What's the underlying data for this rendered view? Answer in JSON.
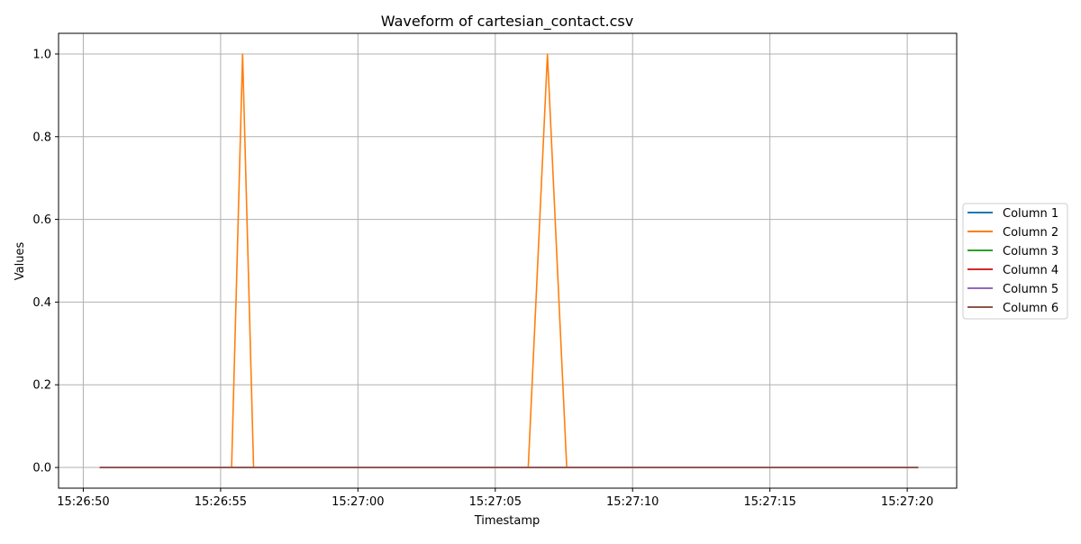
{
  "chart_data": {
    "type": "line",
    "title": "Waveform of cartesian_contact.csv",
    "xlabel": "Timestamp",
    "ylabel": "Values",
    "x_ticks": [
      "15:26:50",
      "15:26:55",
      "15:27:00",
      "15:27:05",
      "15:27:10",
      "15:27:15",
      "15:27:20"
    ],
    "x_tick_values": [
      "15:26:50",
      "15:26:55",
      "15:27:00",
      "15:27:05",
      "15:27:10",
      "15:27:15",
      "15:27:20"
    ],
    "xlim": [
      "15:26:49.1",
      "15:27:21.8"
    ],
    "y_ticks": [
      "0.0",
      "0.2",
      "0.4",
      "0.6",
      "0.8",
      "1.0"
    ],
    "y_tick_values": [
      0.0,
      0.2,
      0.4,
      0.6,
      0.8,
      1.0
    ],
    "ylim": [
      -0.05,
      1.05
    ],
    "grid": true,
    "legend_placement": "right",
    "series": [
      {
        "name": "Column 1",
        "color": "#1f77b4",
        "points": [
          [
            "15:26:50.6",
            0
          ],
          [
            "15:27:20.4",
            0
          ]
        ]
      },
      {
        "name": "Column 2",
        "color": "#ff7f0e",
        "points": [
          [
            "15:26:50.6",
            0
          ],
          [
            "15:26:55.4",
            0
          ],
          [
            "15:26:55.8",
            1
          ],
          [
            "15:26:56.2",
            0
          ],
          [
            "15:27:06.2",
            0
          ],
          [
            "15:27:06.9",
            1
          ],
          [
            "15:27:07.6",
            0
          ],
          [
            "15:27:20.4",
            0
          ]
        ]
      },
      {
        "name": "Column 3",
        "color": "#2ca02c",
        "points": [
          [
            "15:26:50.6",
            0
          ],
          [
            "15:27:20.4",
            0
          ]
        ]
      },
      {
        "name": "Column 4",
        "color": "#d62728",
        "points": [
          [
            "15:26:50.6",
            0
          ],
          [
            "15:27:20.4",
            0
          ]
        ]
      },
      {
        "name": "Column 5",
        "color": "#9467bd",
        "points": [
          [
            "15:26:50.6",
            0
          ],
          [
            "15:27:20.4",
            0
          ]
        ]
      },
      {
        "name": "Column 6",
        "color": "#8c564b",
        "points": [
          [
            "15:26:50.6",
            0
          ],
          [
            "15:27:20.4",
            0
          ]
        ]
      }
    ]
  }
}
